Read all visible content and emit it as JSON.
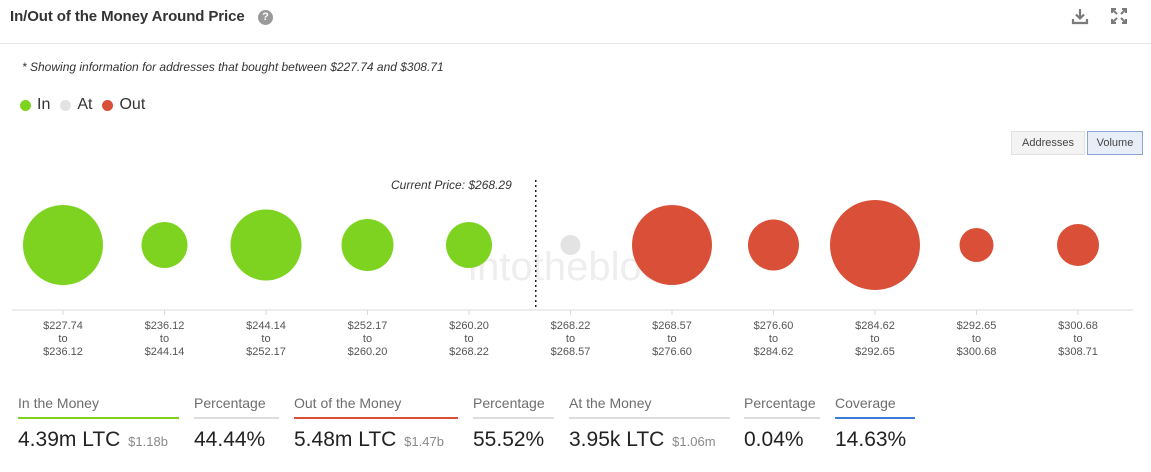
{
  "header": {
    "title": "In/Out of the Money Around Price",
    "help_icon": "question-circle-icon",
    "download_icon": "download-icon",
    "expand_icon": "expand-icon"
  },
  "note": "* Showing information for addresses that bought between $227.74 and $308.71",
  "legend": [
    {
      "label": "In",
      "color": "#7ed321"
    },
    {
      "label": "At",
      "color": "#e3e3e3"
    },
    {
      "label": "Out",
      "color": "#d94f38"
    }
  ],
  "toggle": {
    "addresses": "Addresses",
    "volume": "Volume",
    "active": "volume"
  },
  "watermark": "intotheblock",
  "chart_data": {
    "type": "bubble",
    "current_price_label": "Current Price: $268.29",
    "current_price_after_index": 4,
    "colors": {
      "in": "#7ed321",
      "at": "#e3e3e3",
      "out": "#d94f38"
    },
    "bins": [
      {
        "low": "$227.74",
        "high": "$236.12",
        "status": "in",
        "size": 40
      },
      {
        "low": "$236.12",
        "high": "$244.14",
        "status": "in",
        "size": 23
      },
      {
        "low": "$244.14",
        "high": "$252.17",
        "status": "in",
        "size": 35.5
      },
      {
        "low": "$252.17",
        "high": "$260.20",
        "status": "in",
        "size": 26
      },
      {
        "low": "$260.20",
        "high": "$268.22",
        "status": "in",
        "size": 23
      },
      {
        "low": "$268.22",
        "high": "$268.57",
        "status": "at",
        "size": 10
      },
      {
        "low": "$268.57",
        "high": "$276.60",
        "status": "out",
        "size": 40
      },
      {
        "low": "$276.60",
        "high": "$284.62",
        "status": "out",
        "size": 25.5
      },
      {
        "low": "$284.62",
        "high": "$292.65",
        "status": "out",
        "size": 45
      },
      {
        "low": "$292.65",
        "high": "$300.68",
        "status": "out",
        "size": 17
      },
      {
        "low": "$300.68",
        "high": "$308.71",
        "status": "out",
        "size": 21
      }
    ],
    "to_word": "to"
  },
  "stats": [
    {
      "label": "In the Money",
      "value": "4.39m LTC",
      "sub": "$1.18b",
      "color": "#7ed321"
    },
    {
      "label": "Percentage",
      "value": "44.44%",
      "sub": "",
      "color": "#dddddd"
    },
    {
      "label": "Out of the Money",
      "value": "5.48m LTC",
      "sub": "$1.47b",
      "color": "#d94f38"
    },
    {
      "label": "Percentage",
      "value": "55.52%",
      "sub": "",
      "color": "#dddddd"
    },
    {
      "label": "At the Money",
      "value": "3.95k LTC",
      "sub": "$1.06m",
      "color": "#dddddd"
    },
    {
      "label": "Percentage",
      "value": "0.04%",
      "sub": "",
      "color": "#dddddd"
    },
    {
      "label": "Coverage",
      "value": "14.63%",
      "sub": "",
      "color": "#3b7dd8"
    }
  ]
}
